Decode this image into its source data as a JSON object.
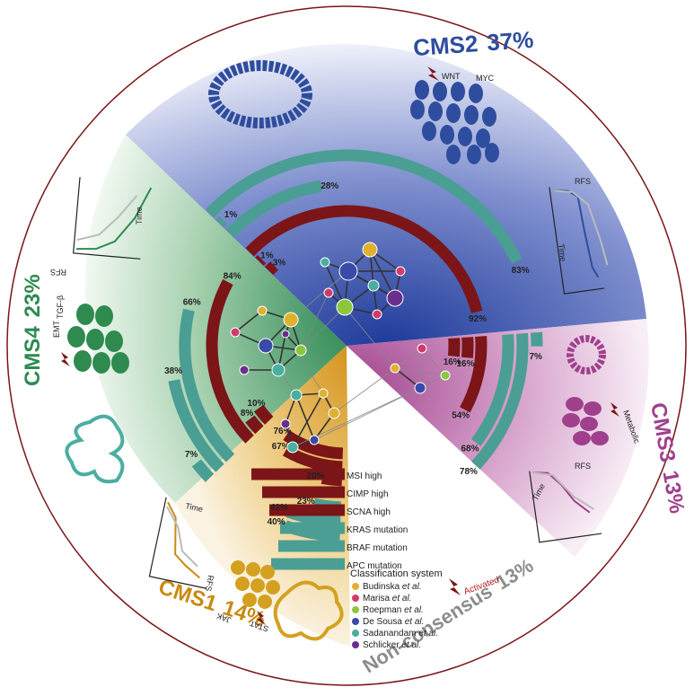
{
  "subtypes": {
    "cms1": {
      "name": "CMS1",
      "pct": "14%",
      "color": "#c98a12",
      "pathways": [
        "JAK",
        "STAT"
      ],
      "km_labels": {
        "time": "Time",
        "rfs": "RFS"
      }
    },
    "cms2": {
      "name": "CMS2",
      "pct": "37%",
      "color": "#2f4d9e",
      "pathways": [
        "WNT",
        "MYC"
      ],
      "km_labels": {
        "time": "Time",
        "rfs": "RFS"
      }
    },
    "cms3": {
      "name": "CMS3",
      "pct": "13%",
      "color": "#a0408c",
      "pathways": [
        "Metabolic"
      ],
      "km_labels": {
        "time": "Time",
        "rfs": "RFS"
      }
    },
    "cms4": {
      "name": "CMS4",
      "pct": "23%",
      "color": "#2e8a4f",
      "pathways": [
        "EMT",
        "TGF-β"
      ],
      "km_labels": {
        "time": "Time",
        "rfs": "RFS"
      }
    },
    "nonconsensus": {
      "name": "Non-consensus",
      "pct": "13%",
      "color": "#8c8c8c"
    }
  },
  "rings": [
    {
      "label": "MSI high",
      "color": "#7b1518"
    },
    {
      "label": "CIMP high",
      "color": "#7b1518"
    },
    {
      "label": "SCNA high",
      "color": "#7b1518"
    },
    {
      "label": "KRAS mutation",
      "color": "#4a9e94"
    },
    {
      "label": "BRAF mutation",
      "color": "#4a9e94"
    },
    {
      "label": "APC mutation",
      "color": "#4a9e94"
    }
  ],
  "ring_percentages": {
    "cms2": [
      "3%",
      "1%",
      "92%",
      "28%",
      "1%",
      "83%"
    ],
    "cms3": [
      "16%",
      "16%",
      "54%",
      "68%",
      "78%",
      "7%"
    ],
    "cms4": [
      "10%",
      "8%",
      "84%",
      "66%",
      "38%",
      "7%"
    ],
    "cms1": [
      "76%",
      "67%",
      "20%",
      "23%",
      "42%",
      "40%"
    ]
  },
  "legend": {
    "title": "Classification system",
    "activated": "Activated",
    "systems": [
      {
        "name": "Budinska",
        "suffix": "et al.",
        "color": "#e0b030"
      },
      {
        "name": "Marisa",
        "suffix": "et al.",
        "color": "#d03c6a"
      },
      {
        "name": "Roepman",
        "suffix": "et al.",
        "color": "#8cc63f"
      },
      {
        "name": "De Sousa",
        "suffix": "et al.",
        "color": "#3a4aa8"
      },
      {
        "name": "Sadanandam",
        "suffix": "et al.",
        "color": "#4aaea0"
      },
      {
        "name": "Schlicker",
        "suffix": "et al.",
        "color": "#6a2f8e"
      }
    ]
  }
}
